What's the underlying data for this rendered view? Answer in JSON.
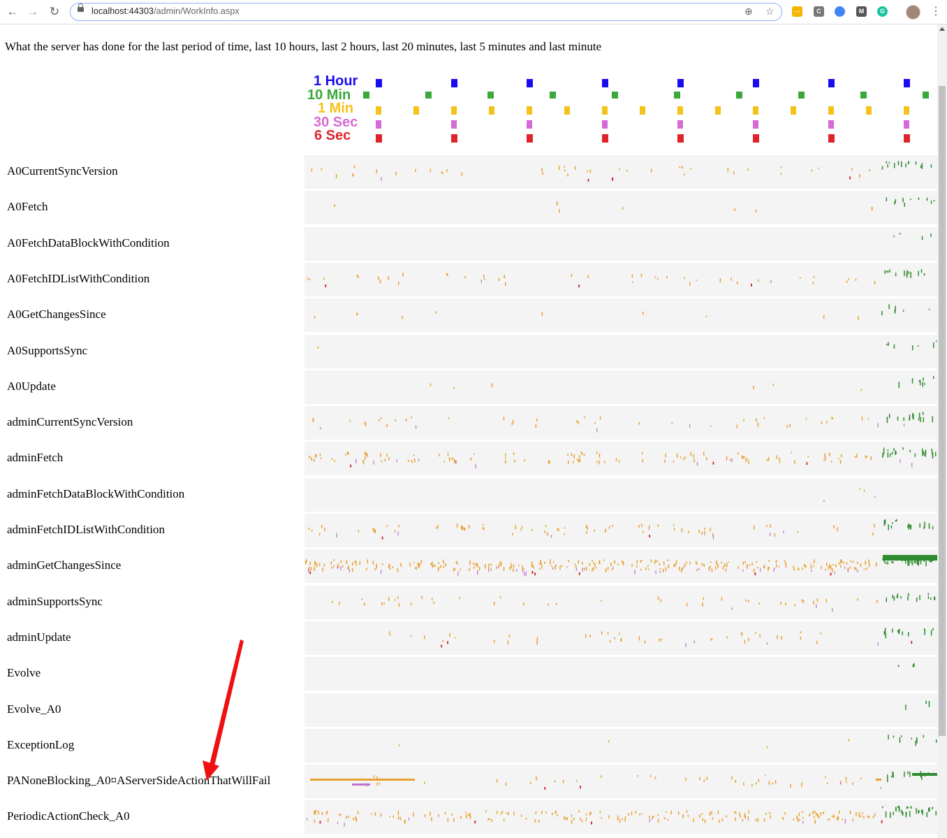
{
  "browser": {
    "url_host": "localhost:44303",
    "url_path": "/admin/WorkInfo.aspx",
    "icons": [
      "back-arrow-icon",
      "forward-arrow-icon",
      "reload-icon",
      "lock-icon",
      "zoom-icon",
      "star-icon",
      "extension-icon",
      "profile-avatar",
      "menu-icon"
    ]
  },
  "page": {
    "intro": "What the server has done for the last period of time, last 10 hours, last 2 hours, last 20 minutes, last 5 minutes and last minute"
  },
  "legend": [
    {
      "label": "1 Hour",
      "color": "#1a0cf0"
    },
    {
      "label": "10 Min",
      "color": "#3aa83a"
    },
    {
      "label": "1 Min",
      "color": "#f5c21b"
    },
    {
      "label": "30 Sec",
      "color": "#d66ad6"
    },
    {
      "label": "6 Sec",
      "color": "#e0242c"
    }
  ],
  "rows": [
    {
      "name": "A0CurrentSyncVersion"
    },
    {
      "name": "A0Fetch"
    },
    {
      "name": "A0FetchDataBlockWithCondition"
    },
    {
      "name": "A0FetchIDListWithCondition"
    },
    {
      "name": "A0GetChangesSince"
    },
    {
      "name": "A0SupportsSync"
    },
    {
      "name": "A0Update"
    },
    {
      "name": "adminCurrentSyncVersion"
    },
    {
      "name": "adminFetch"
    },
    {
      "name": "adminFetchDataBlockWithCondition"
    },
    {
      "name": "adminFetchIDListWithCondition"
    },
    {
      "name": "adminGetChangesSince"
    },
    {
      "name": "adminSupportsSync"
    },
    {
      "name": "adminUpdate"
    },
    {
      "name": "Evolve"
    },
    {
      "name": "Evolve_A0"
    },
    {
      "name": "ExceptionLog"
    },
    {
      "name": "PANoneBlocking_A0¤AServerSideActionThatWillFail"
    },
    {
      "name": "PeriodicActionCheck_A0"
    }
  ],
  "colors": {
    "orange": "#e8a030",
    "green": "#2e8b2e",
    "purple": "#c070d0",
    "red": "#d02020",
    "annotation_arrow": "#ee1111"
  }
}
